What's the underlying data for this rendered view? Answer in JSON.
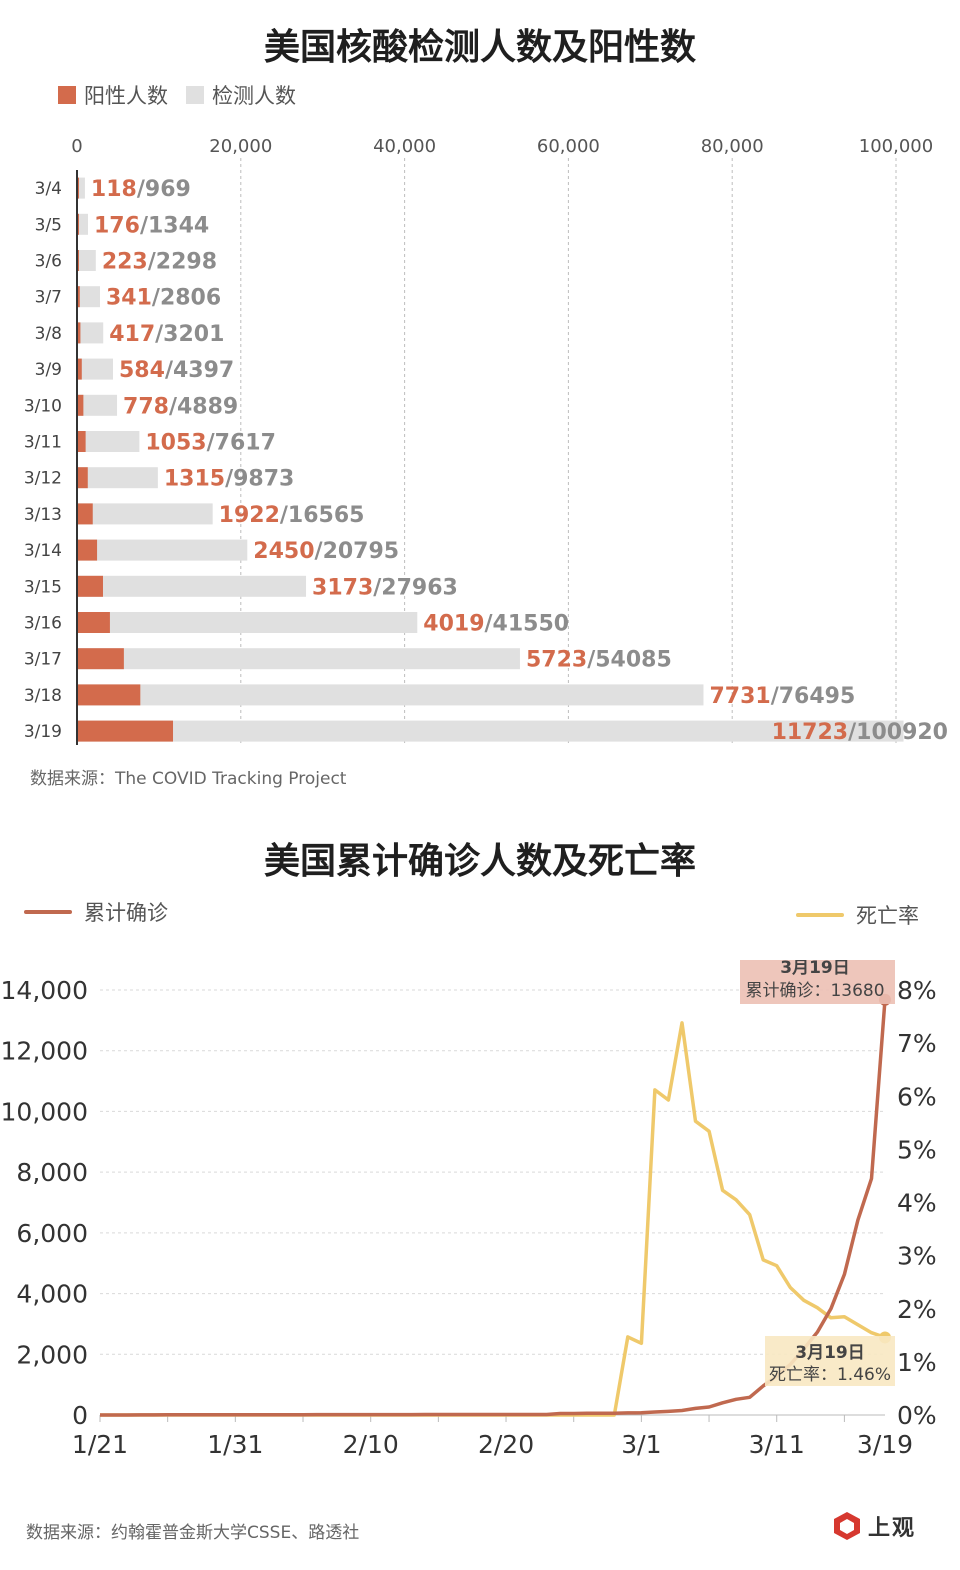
{
  "chart1": {
    "title": "美国核酸检测人数及阳性数",
    "legend": {
      "positive": "阳性人数",
      "tested": "检测人数"
    },
    "source": "数据来源：The COVID Tracking Project",
    "colors": {
      "positive": "#d36b4c",
      "tested": "#e0e0e0",
      "positive_text": "#d36b4c",
      "tested_text": "#8c8c8c"
    }
  },
  "chart2": {
    "title": "美国累计确诊人数及死亡率",
    "legend": {
      "cases": "累计确诊",
      "rate": "死亡率"
    },
    "source": "数据来源：约翰霍普金斯大学CSSE、路透社",
    "annotation_cases": {
      "date": "3月19日",
      "text": "累计确诊：13680"
    },
    "annotation_rate": {
      "date": "3月19日",
      "text": "死亡率：1.46%"
    },
    "colors": {
      "cases": "#c0694f",
      "rate": "#efc96b",
      "cases_box": "#ecc0b4",
      "rate_box": "#f8e8c2"
    }
  },
  "logo": {
    "text": "上观"
  },
  "chart_data": [
    {
      "type": "bar",
      "orientation": "horizontal",
      "title": "美国核酸检测人数及阳性数",
      "categories": [
        "3/4",
        "3/5",
        "3/6",
        "3/7",
        "3/8",
        "3/9",
        "3/10",
        "3/11",
        "3/12",
        "3/13",
        "3/14",
        "3/15",
        "3/16",
        "3/17",
        "3/18",
        "3/19"
      ],
      "series": [
        {
          "name": "阳性人数",
          "values": [
            118,
            176,
            223,
            341,
            417,
            584,
            778,
            1053,
            1315,
            1922,
            2450,
            3173,
            4019,
            5723,
            7731,
            11723
          ]
        },
        {
          "name": "检测人数",
          "values": [
            969,
            1344,
            2298,
            2806,
            3201,
            4397,
            4889,
            7617,
            9873,
            16565,
            20795,
            27963,
            41550,
            54085,
            76495,
            100920
          ]
        }
      ],
      "xlim": [
        0,
        100000
      ],
      "xticks": [
        0,
        20000,
        40000,
        60000,
        80000,
        100000
      ],
      "xtick_labels": [
        "0",
        "20,000",
        "40,000",
        "60,000",
        "80,000",
        "100,000"
      ],
      "grid": true,
      "legend_position": "top-left"
    },
    {
      "type": "line",
      "title": "美国累计确诊人数及死亡率",
      "x": [
        "1/21",
        "1/22",
        "1/23",
        "1/24",
        "1/25",
        "1/26",
        "1/27",
        "1/28",
        "1/29",
        "1/30",
        "1/31",
        "2/1",
        "2/2",
        "2/3",
        "2/4",
        "2/5",
        "2/6",
        "2/7",
        "2/8",
        "2/9",
        "2/10",
        "2/11",
        "2/12",
        "2/13",
        "2/14",
        "2/15",
        "2/16",
        "2/17",
        "2/18",
        "2/19",
        "2/20",
        "2/21",
        "2/22",
        "2/23",
        "2/24",
        "2/25",
        "2/26",
        "2/27",
        "2/28",
        "2/29",
        "3/1",
        "3/2",
        "3/3",
        "3/4",
        "3/5",
        "3/6",
        "3/7",
        "3/8",
        "3/9",
        "3/10",
        "3/11",
        "3/12",
        "3/13",
        "3/14",
        "3/15",
        "3/16",
        "3/17",
        "3/18",
        "3/19"
      ],
      "xtick_labels": [
        "1/21",
        "1/31",
        "2/10",
        "2/20",
        "3/1",
        "3/11",
        "3/19"
      ],
      "series": [
        {
          "name": "累计确诊",
          "axis": "left",
          "values": [
            1,
            1,
            1,
            2,
            2,
            5,
            5,
            5,
            5,
            6,
            7,
            8,
            8,
            11,
            11,
            11,
            12,
            12,
            12,
            12,
            12,
            13,
            13,
            14,
            15,
            15,
            15,
            15,
            15,
            15,
            15,
            15,
            15,
            15,
            51,
            51,
            57,
            58,
            60,
            68,
            74,
            98,
            118,
            149,
            217,
            262,
            402,
            518,
            583,
            959,
            1281,
            1663,
            2179,
            2726,
            3499,
            4632,
            6421,
            7786,
            13680
          ]
        },
        {
          "name": "死亡率",
          "axis": "right",
          "unit": "%",
          "values": [
            0,
            0,
            0,
            0,
            0,
            0,
            0,
            0,
            0,
            0,
            0,
            0,
            0,
            0,
            0,
            0,
            0,
            0,
            0,
            0,
            0,
            0,
            0,
            0,
            0,
            0,
            0,
            0,
            0,
            0,
            0,
            0,
            0,
            0,
            0,
            0,
            0,
            0,
            0,
            1.47,
            1.35,
            6.12,
            5.93,
            7.38,
            5.53,
            5.34,
            4.23,
            4.05,
            3.77,
            2.92,
            2.81,
            2.4,
            2.16,
            2.02,
            1.83,
            1.85,
            1.7,
            1.55,
            1.46
          ]
        }
      ],
      "ylim_left": [
        0,
        14000
      ],
      "yticks_left": [
        "0",
        "2,000",
        "4,000",
        "6,000",
        "8,000",
        "10,000",
        "12,000",
        "14,000"
      ],
      "ylim_right": [
        0,
        8
      ],
      "yticks_right": [
        "0%",
        "1%",
        "2%",
        "3%",
        "4%",
        "5%",
        "6%",
        "7%",
        "8%"
      ],
      "grid": true,
      "legend_position": "top"
    }
  ]
}
